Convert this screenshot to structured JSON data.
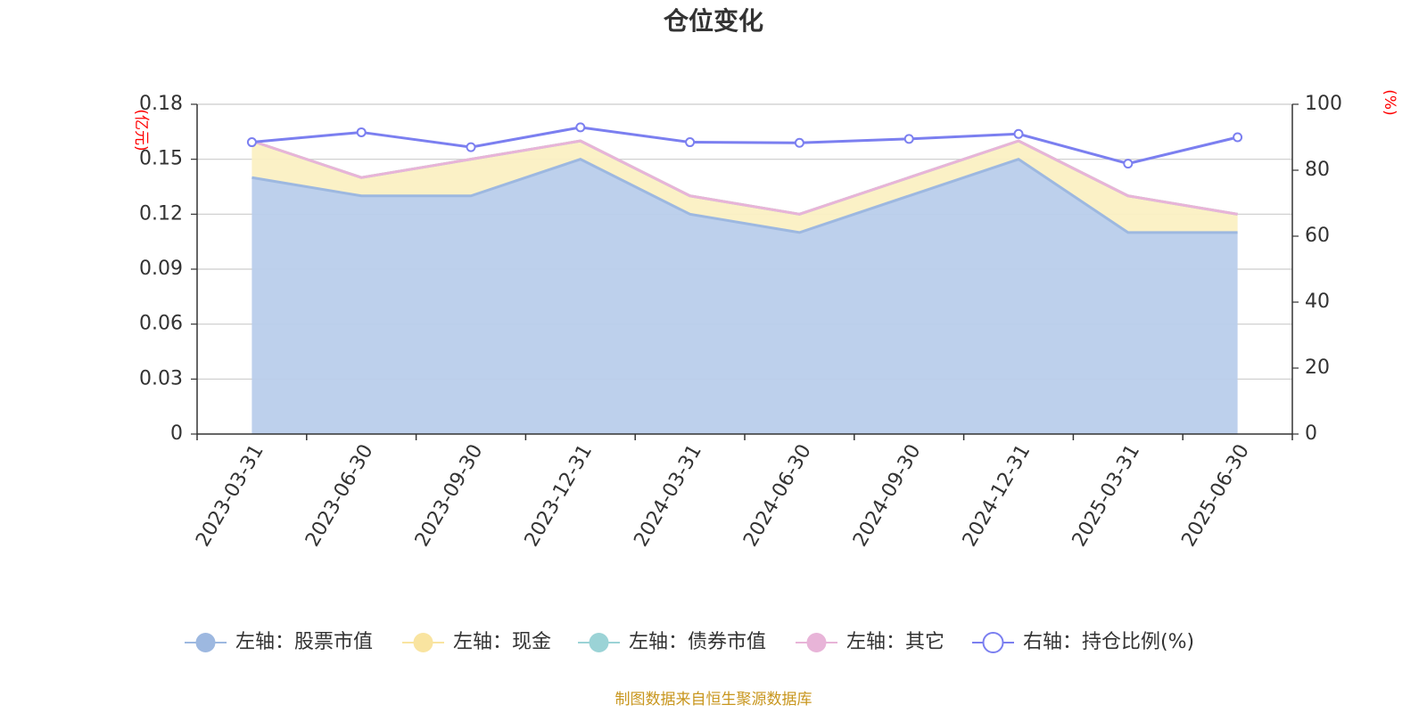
{
  "chart_data": {
    "type": "area",
    "title": "仓位变化",
    "left_axis_unit": "(亿元)",
    "right_axis_unit": "(%)",
    "categories": [
      "2023-03-31",
      "2023-06-30",
      "2023-09-30",
      "2023-12-31",
      "2024-03-31",
      "2024-06-30",
      "2024-09-30",
      "2024-12-31",
      "2025-03-31",
      "2025-06-30"
    ],
    "left_axis": {
      "min": 0,
      "max": 0.18,
      "ticks": [
        "0",
        "0.03",
        "0.06",
        "0.09",
        "0.12",
        "0.15",
        "0.18"
      ]
    },
    "right_axis": {
      "min": 0,
      "max": 100,
      "ticks": [
        "0",
        "20",
        "40",
        "60",
        "80",
        "100"
      ]
    },
    "series": [
      {
        "name": "左轴：股票市值",
        "axis": "left",
        "stacked": true,
        "color": "#9db8e0",
        "fill": "#b9cdeb",
        "values": [
          0.14,
          0.13,
          0.13,
          0.15,
          0.12,
          0.11,
          0.13,
          0.15,
          0.11,
          0.11
        ]
      },
      {
        "name": "左轴：现金",
        "axis": "left",
        "stacked": true,
        "color": "#f9e4a0",
        "fill": "#fbf0c3",
        "values": [
          0.02,
          0.01,
          0.02,
          0.01,
          0.01,
          0.01,
          0.01,
          0.01,
          0.02,
          0.01
        ]
      },
      {
        "name": "左轴：债券市值",
        "axis": "left",
        "stacked": true,
        "color": "#9bd3d6",
        "fill": "#c4e6e8",
        "values": [
          0,
          0,
          0,
          0,
          0,
          0,
          0,
          0,
          0,
          0
        ]
      },
      {
        "name": "左轴：其它",
        "axis": "left",
        "stacked": true,
        "color": "#e8b4d8",
        "fill": "#f3d6ea",
        "values": [
          0,
          0,
          0,
          0,
          0,
          0,
          0,
          0,
          0,
          0
        ]
      },
      {
        "name": "右轴：持仓比例(%)",
        "axis": "right",
        "type": "line",
        "color": "#7b7ff0",
        "values": [
          88.5,
          91.5,
          87,
          93,
          88.5,
          88.3,
          89.5,
          91,
          82,
          90
        ]
      }
    ],
    "legend_position": "bottom",
    "grid": true
  },
  "source_note": "制图数据来自恒生聚源数据库"
}
